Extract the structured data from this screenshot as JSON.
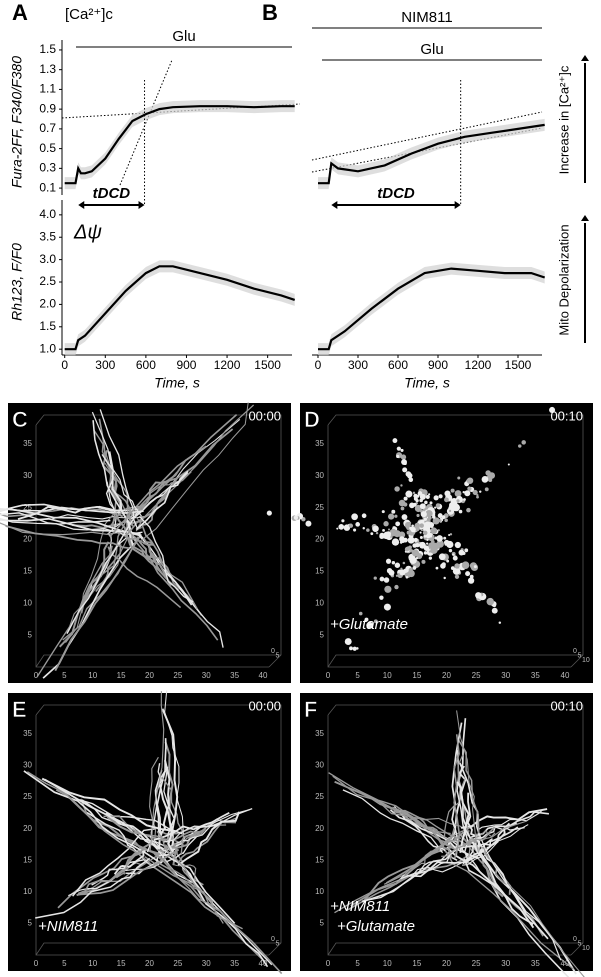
{
  "chart_data": [
    {
      "type": "line",
      "panel": "A",
      "annotation": "[Ca²⁺]c",
      "treatments": [
        "Glu"
      ],
      "ylabel": "Fura-2FF, F340/F380",
      "ylim": [
        0.03,
        1.55
      ],
      "yticks": [
        0.1,
        0.3,
        0.5,
        0.7,
        0.9,
        1.1,
        1.3,
        1.5
      ],
      "xlim": [
        -20,
        1680
      ],
      "tdcd": {
        "label": "tDCD",
        "range": [
          100,
          590
        ]
      },
      "x": [
        0,
        80,
        100,
        120,
        150,
        200,
        300,
        400,
        500,
        600,
        700,
        800,
        1000,
        1200,
        1400,
        1600,
        1700
      ],
      "series": [
        {
          "name": "mean",
          "color": "#000000",
          "values": [
            0.15,
            0.15,
            0.3,
            0.25,
            0.25,
            0.27,
            0.4,
            0.6,
            0.78,
            0.85,
            0.9,
            0.92,
            0.93,
            0.93,
            0.92,
            0.93,
            0.93
          ]
        }
      ]
    },
    {
      "type": "line",
      "annotation": "Δψ",
      "ylabel": "Rh123, F/F0",
      "ylim": [
        0.87,
        4.22
      ],
      "yticks": [
        1.0,
        1.5,
        2.0,
        2.5,
        3.0,
        3.5,
        4.0
      ],
      "xlim": [
        -20,
        1680
      ],
      "xticks": [
        0,
        300,
        600,
        900,
        1200,
        1500
      ],
      "xlabel": "Time, s",
      "x": [
        0,
        80,
        100,
        150,
        300,
        450,
        600,
        700,
        800,
        1000,
        1200,
        1400,
        1600,
        1700
      ],
      "series": [
        {
          "name": "mean",
          "color": "#000000",
          "values": [
            1.0,
            1.0,
            1.2,
            1.3,
            1.8,
            2.3,
            2.7,
            2.85,
            2.85,
            2.7,
            2.55,
            2.35,
            2.2,
            2.1
          ]
        }
      ]
    },
    {
      "type": "line",
      "panel": "B",
      "treatments": [
        "NIM811",
        "Glu"
      ],
      "side_label": "Increase in [Ca²⁺]c",
      "ylim": [
        0.03,
        1.55
      ],
      "xlim": [
        -45,
        1680
      ],
      "tdcd": {
        "label": "tDCD",
        "range": [
          100,
          1070
        ]
      },
      "x": [
        0,
        80,
        100,
        150,
        300,
        500,
        700,
        900,
        1100,
        1300,
        1500,
        1700
      ],
      "series": [
        {
          "name": "mean",
          "color": "#000000",
          "values": [
            0.15,
            0.15,
            0.35,
            0.3,
            0.27,
            0.33,
            0.45,
            0.55,
            0.62,
            0.66,
            0.7,
            0.74
          ]
        }
      ]
    },
    {
      "type": "line",
      "side_label": "Mito Depolarization",
      "ylim": [
        0.87,
        4.22
      ],
      "xlim": [
        -45,
        1680
      ],
      "xticks": [
        0,
        300,
        600,
        900,
        1200,
        1500
      ],
      "xlabel": "Time, s",
      "x": [
        0,
        80,
        100,
        200,
        400,
        600,
        800,
        1000,
        1200,
        1400,
        1600,
        1700
      ],
      "series": [
        {
          "name": "mean",
          "color": "#000000",
          "values": [
            1.0,
            1.0,
            1.2,
            1.4,
            1.9,
            2.35,
            2.7,
            2.8,
            2.75,
            2.7,
            2.7,
            2.6
          ]
        }
      ]
    }
  ],
  "images": [
    {
      "panel": "C",
      "time": "00:00",
      "xticks": [
        0,
        5,
        10,
        15,
        20,
        25,
        30,
        35,
        40
      ],
      "yticks": [
        5,
        10,
        15,
        20,
        25,
        30,
        35
      ],
      "zticks": [
        0,
        5
      ]
    },
    {
      "panel": "D",
      "time": "00:10",
      "labels": [
        "+Glutamate"
      ],
      "xticks": [
        0,
        5,
        10,
        15,
        20,
        25,
        30,
        35,
        40
      ],
      "yticks": [
        5,
        10,
        15,
        20,
        25,
        30,
        35
      ],
      "zticks": [
        0,
        5,
        10
      ]
    },
    {
      "panel": "E",
      "time": "00:00",
      "labels": [
        "+NIM811"
      ],
      "xticks": [
        0,
        5,
        10,
        15,
        20,
        25,
        30,
        35,
        40
      ],
      "yticks": [
        5,
        10,
        15,
        20,
        25,
        30,
        35
      ],
      "zticks": [
        0,
        5
      ]
    },
    {
      "panel": "F",
      "time": "00:10",
      "labels": [
        "+NIM811",
        "+Glutamate"
      ],
      "xticks": [
        0,
        5,
        10,
        15,
        20,
        25,
        30,
        35,
        40
      ],
      "yticks": [
        5,
        10,
        15,
        20,
        25,
        30,
        35
      ],
      "zticks": [
        0,
        5,
        10
      ]
    }
  ]
}
